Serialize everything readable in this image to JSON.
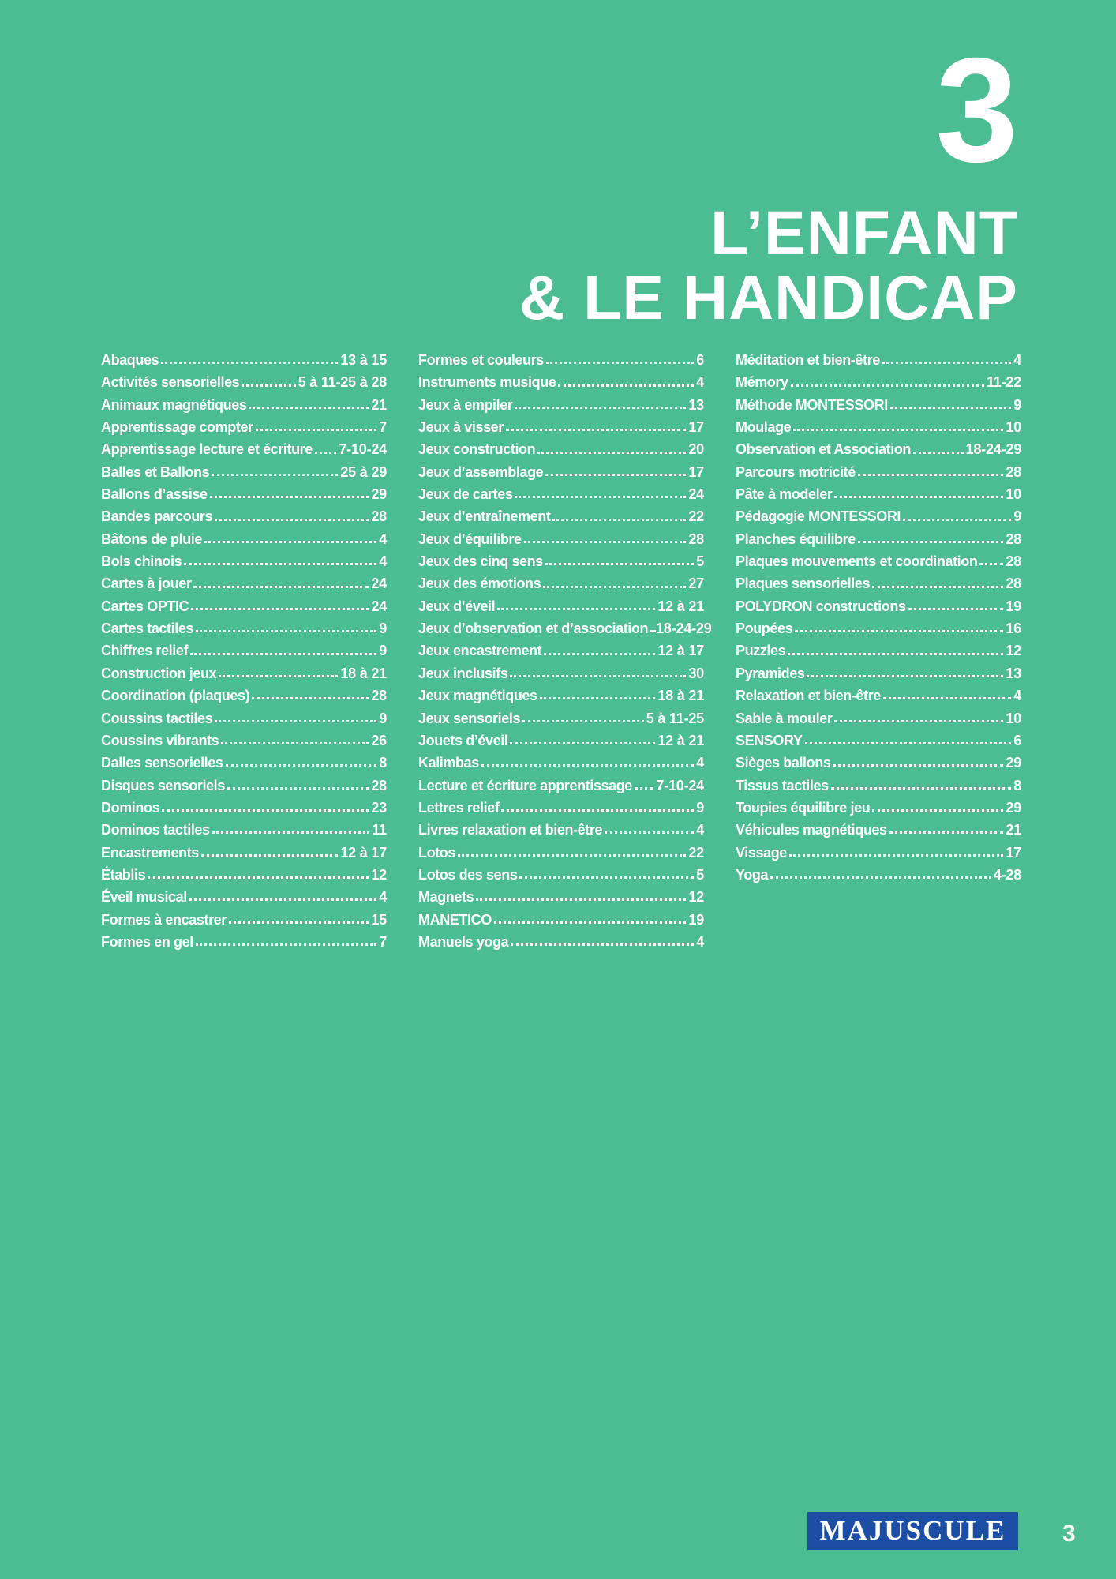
{
  "page": {
    "background_color": "#4cbd93",
    "text_color": "#ffffff"
  },
  "header": {
    "chapter_number": "3",
    "title_line1": "L’ENFANT",
    "title_line2": "& LE HANDICAP"
  },
  "index": {
    "columns": [
      {
        "entries": [
          {
            "label": "Abaques",
            "pages": "13 à 15"
          },
          {
            "label": "Activités sensorielles",
            "pages": "5 à 11-25 à 28"
          },
          {
            "label": "Animaux magnétiques",
            "pages": "21"
          },
          {
            "label": "Apprentissage compter",
            "pages": "7"
          },
          {
            "label": "Apprentissage lecture et écriture",
            "pages": "7-10-24"
          },
          {
            "label": "Balles et Ballons",
            "pages": "25 à 29"
          },
          {
            "label": "Ballons d’assise",
            "pages": "29"
          },
          {
            "label": "Bandes parcours",
            "pages": "28"
          },
          {
            "label": "Bâtons de pluie",
            "pages": "4"
          },
          {
            "label": "Bols chinois",
            "pages": "4"
          },
          {
            "label": "Cartes à jouer",
            "pages": "24"
          },
          {
            "label": "Cartes OPTIC",
            "pages": "24"
          },
          {
            "label": "Cartes tactiles",
            "pages": "9"
          },
          {
            "label": "Chiffres relief",
            "pages": "9"
          },
          {
            "label": "Construction jeux",
            "pages": "18 à 21"
          },
          {
            "label": "Coordination (plaques)",
            "pages": "28"
          },
          {
            "label": "Coussins tactiles",
            "pages": "9"
          },
          {
            "label": "Coussins vibrants",
            "pages": "26"
          },
          {
            "label": "Dalles sensorielles",
            "pages": "8"
          },
          {
            "label": "Disques sensoriels",
            "pages": "28"
          },
          {
            "label": "Dominos",
            "pages": "23"
          },
          {
            "label": "Dominos tactiles",
            "pages": "11"
          },
          {
            "label": "Encastrements",
            "pages": "12 à 17"
          },
          {
            "label": "Établis",
            "pages": "12"
          },
          {
            "label": "Éveil musical",
            "pages": "4"
          },
          {
            "label": "Formes à encastrer",
            "pages": "15"
          },
          {
            "label": "Formes en gel",
            "pages": "7"
          }
        ]
      },
      {
        "entries": [
          {
            "label": "Formes et couleurs",
            "pages": "6"
          },
          {
            "label": "Instruments musique",
            "pages": "4"
          },
          {
            "label": "Jeux à empiler",
            "pages": "13"
          },
          {
            "label": "Jeux à visser",
            "pages": "17"
          },
          {
            "label": "Jeux construction",
            "pages": "20"
          },
          {
            "label": "Jeux d’assemblage",
            "pages": "17"
          },
          {
            "label": "Jeux de cartes",
            "pages": "24"
          },
          {
            "label": "Jeux d’entraînement",
            "pages": "22"
          },
          {
            "label": "Jeux d’équilibre",
            "pages": "28"
          },
          {
            "label": "Jeux des cinq sens",
            "pages": "5"
          },
          {
            "label": "Jeux des émotions",
            "pages": "27"
          },
          {
            "label": "Jeux d’éveil",
            "pages": "12 à 21"
          },
          {
            "label": "Jeux d’observation et d’association",
            "pages": "18-24-29"
          },
          {
            "label": "Jeux encastrement",
            "pages": "12 à 17"
          },
          {
            "label": "Jeux inclusifs",
            "pages": "30"
          },
          {
            "label": "Jeux magnétiques",
            "pages": "18 à 21"
          },
          {
            "label": "Jeux sensoriels",
            "pages": "5 à 11-25"
          },
          {
            "label": "Jouets d’éveil",
            "pages": "12 à 21"
          },
          {
            "label": "Kalimbas",
            "pages": "4"
          },
          {
            "label": "Lecture et écriture apprentissage",
            "pages": "7-10-24"
          },
          {
            "label": "Lettres relief",
            "pages": "9"
          },
          {
            "label": "Livres relaxation et bien-être",
            "pages": "4"
          },
          {
            "label": "Lotos",
            "pages": "22"
          },
          {
            "label": "Lotos des sens",
            "pages": "5"
          },
          {
            "label": "Magnets",
            "pages": "12"
          },
          {
            "label": "MANETICO",
            "pages": "19"
          },
          {
            "label": "Manuels yoga",
            "pages": "4"
          }
        ]
      },
      {
        "entries": [
          {
            "label": "Méditation et bien-être",
            "pages": "4"
          },
          {
            "label": "Mémory",
            "pages": "11-22"
          },
          {
            "label": "Méthode MONTESSORI",
            "pages": "9"
          },
          {
            "label": "Moulage",
            "pages": "10"
          },
          {
            "label": "Observation et Association",
            "pages": "18-24-29"
          },
          {
            "label": "Parcours motricité",
            "pages": "28"
          },
          {
            "label": "Pâte à modeler",
            "pages": "10"
          },
          {
            "label": "Pédagogie MONTESSORI",
            "pages": "9"
          },
          {
            "label": "Planches équilibre",
            "pages": "28"
          },
          {
            "label": "Plaques mouvements et coordination",
            "pages": "28"
          },
          {
            "label": "Plaques sensorielles",
            "pages": "28"
          },
          {
            "label": "POLYDRON constructions",
            "pages": "19"
          },
          {
            "label": "Poupées",
            "pages": "16"
          },
          {
            "label": "Puzzles",
            "pages": "12"
          },
          {
            "label": "Pyramides",
            "pages": "13"
          },
          {
            "label": "Relaxation et bien-être",
            "pages": "4"
          },
          {
            "label": "Sable à mouler",
            "pages": "10"
          },
          {
            "label": "SENSORY",
            "pages": "6"
          },
          {
            "label": "Sièges ballons",
            "pages": "29"
          },
          {
            "label": "Tissus tactiles",
            "pages": "8"
          },
          {
            "label": "Toupies équilibre jeu",
            "pages": "29"
          },
          {
            "label": "Véhicules magnétiques",
            "pages": "21"
          },
          {
            "label": "Vissage",
            "pages": "17"
          },
          {
            "label": "Yoga",
            "pages": "4-28"
          }
        ]
      }
    ]
  },
  "footer": {
    "logo_text": "MAJUSCULE",
    "logo_bg_color": "#1d4ea6",
    "page_number": "3"
  }
}
